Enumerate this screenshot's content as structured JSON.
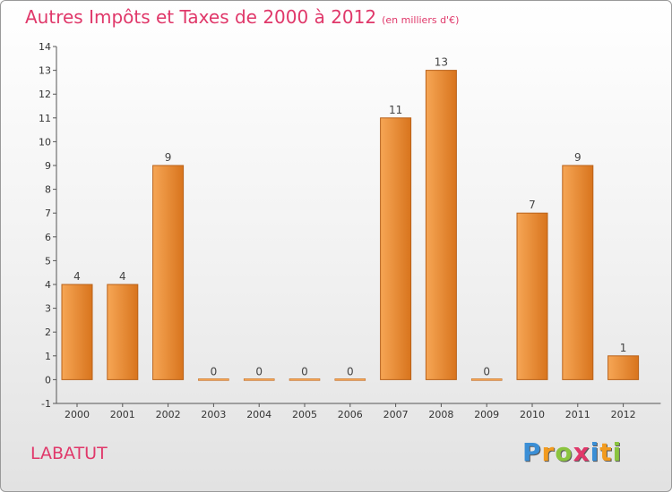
{
  "title": "Autres Impôts et Taxes de 2000 à 2012",
  "unit": "(en milliers d'€)",
  "commune": "LABATUT",
  "logo": {
    "letters": [
      "P",
      "r",
      "o",
      "x",
      "i",
      "t",
      "i"
    ],
    "colors": [
      "#3b8fd6",
      "#f29b1f",
      "#8bc43f",
      "#e0386a",
      "#3b8fd6",
      "#f29b1f",
      "#8bc43f"
    ]
  },
  "colors": {
    "bar_light": "#f6a655",
    "bar_dark": "#d8741d",
    "bar_edge": "#b9621a",
    "title": "#e0386a"
  },
  "chart_data": {
    "type": "bar",
    "categories": [
      "2000",
      "2001",
      "2002",
      "2003",
      "2004",
      "2005",
      "2006",
      "2007",
      "2008",
      "2009",
      "2010",
      "2011",
      "2012"
    ],
    "values": [
      4,
      4,
      9,
      0,
      0,
      0,
      0,
      11,
      13,
      0,
      7,
      9,
      1
    ],
    "data_labels": [
      "4",
      "4",
      "9",
      "0",
      "0",
      "0",
      "0",
      "11",
      "13",
      "0",
      "7",
      "9",
      "1"
    ],
    "yticks": [
      -1,
      0,
      1,
      2,
      3,
      4,
      5,
      6,
      7,
      8,
      9,
      10,
      11,
      12,
      13,
      14
    ],
    "ylim": [
      -1,
      14
    ],
    "grid": false
  }
}
